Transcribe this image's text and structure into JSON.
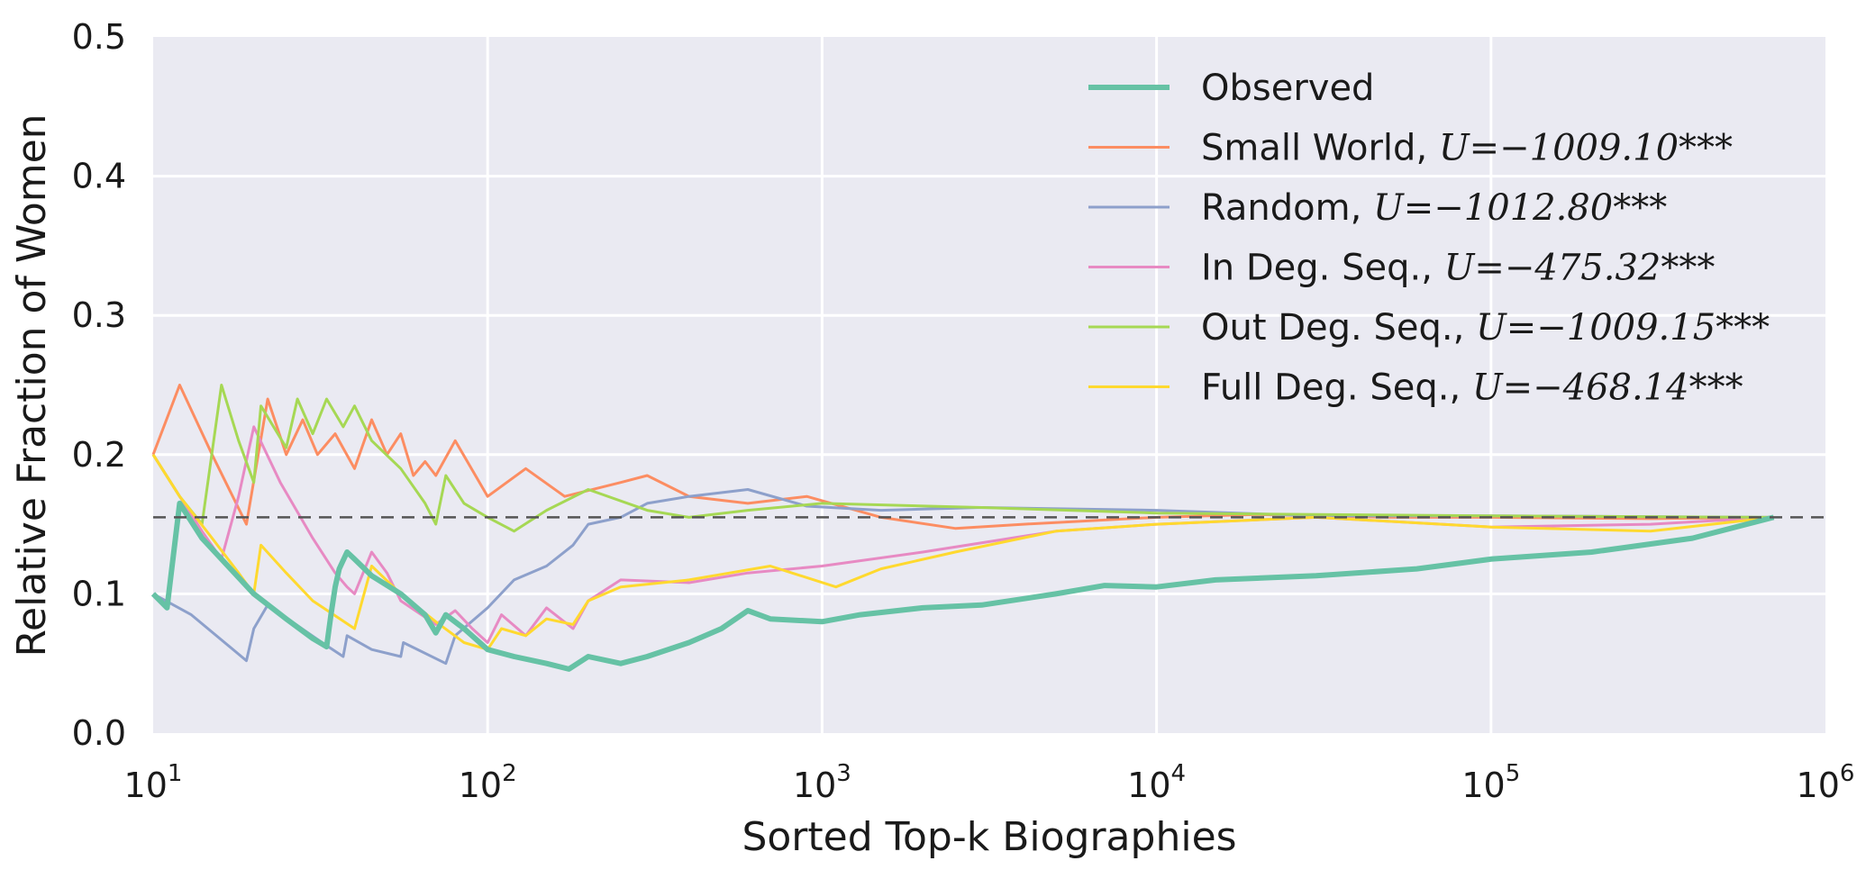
{
  "chart_data": {
    "type": "line",
    "xlabel": "Sorted Top-k Biographies",
    "ylabel": "Relative Fraction of Women",
    "x_scale": "log",
    "xlim": [
      10,
      1000000
    ],
    "ylim": [
      0,
      0.5
    ],
    "x_ticks": [
      {
        "value": 10,
        "base": "10",
        "exp": "1"
      },
      {
        "value": 100,
        "base": "10",
        "exp": "2"
      },
      {
        "value": 1000,
        "base": "10",
        "exp": "3"
      },
      {
        "value": 10000,
        "base": "10",
        "exp": "4"
      },
      {
        "value": 100000,
        "base": "10",
        "exp": "5"
      },
      {
        "value": 1000000,
        "base": "10",
        "exp": "6"
      }
    ],
    "y_ticks": [
      {
        "value": 0.0,
        "label": "0.0"
      },
      {
        "value": 0.1,
        "label": "0.1"
      },
      {
        "value": 0.2,
        "label": "0.2"
      },
      {
        "value": 0.3,
        "label": "0.3"
      },
      {
        "value": 0.4,
        "label": "0.4"
      },
      {
        "value": 0.5,
        "label": "0.5"
      }
    ],
    "grid": true,
    "legend_position": "upper-right",
    "reference_line": {
      "y": 0.155,
      "style": "dashed",
      "color": "#555555"
    },
    "series": [
      {
        "name": "Observed",
        "stat": "",
        "color": "#66c2a5",
        "width": 6,
        "points": [
          [
            10,
            0.1
          ],
          [
            11,
            0.09
          ],
          [
            12,
            0.165
          ],
          [
            14,
            0.14
          ],
          [
            16,
            0.125
          ],
          [
            20,
            0.1
          ],
          [
            25,
            0.082
          ],
          [
            30,
            0.068
          ],
          [
            33,
            0.062
          ],
          [
            34,
            0.085
          ],
          [
            35,
            0.105
          ],
          [
            36,
            0.118
          ],
          [
            38,
            0.13
          ],
          [
            40,
            0.125
          ],
          [
            45,
            0.113
          ],
          [
            55,
            0.1
          ],
          [
            65,
            0.085
          ],
          [
            70,
            0.072
          ],
          [
            75,
            0.085
          ],
          [
            85,
            0.075
          ],
          [
            100,
            0.06
          ],
          [
            120,
            0.055
          ],
          [
            150,
            0.05
          ],
          [
            175,
            0.046
          ],
          [
            200,
            0.055
          ],
          [
            250,
            0.05
          ],
          [
            300,
            0.055
          ],
          [
            400,
            0.065
          ],
          [
            500,
            0.075
          ],
          [
            600,
            0.088
          ],
          [
            700,
            0.082
          ],
          [
            1000,
            0.08
          ],
          [
            1300,
            0.085
          ],
          [
            2000,
            0.09
          ],
          [
            3000,
            0.092
          ],
          [
            5000,
            0.1
          ],
          [
            7000,
            0.106
          ],
          [
            10000,
            0.105
          ],
          [
            15000,
            0.11
          ],
          [
            30000,
            0.113
          ],
          [
            60000,
            0.118
          ],
          [
            100000,
            0.125
          ],
          [
            200000,
            0.13
          ],
          [
            400000,
            0.14
          ],
          [
            700000,
            0.155
          ]
        ]
      },
      {
        "name": "Small World, ",
        "stat": "U=−1009.10***",
        "color": "#fc8d62",
        "width": 3,
        "points": [
          [
            10,
            0.2
          ],
          [
            12,
            0.25
          ],
          [
            15,
            0.2
          ],
          [
            19,
            0.15
          ],
          [
            22,
            0.24
          ],
          [
            25,
            0.2
          ],
          [
            28,
            0.225
          ],
          [
            31,
            0.2
          ],
          [
            35,
            0.215
          ],
          [
            40,
            0.19
          ],
          [
            45,
            0.225
          ],
          [
            50,
            0.2
          ],
          [
            55,
            0.215
          ],
          [
            60,
            0.185
          ],
          [
            65,
            0.195
          ],
          [
            70,
            0.185
          ],
          [
            80,
            0.21
          ],
          [
            100,
            0.17
          ],
          [
            130,
            0.19
          ],
          [
            170,
            0.17
          ],
          [
            250,
            0.18
          ],
          [
            300,
            0.185
          ],
          [
            400,
            0.17
          ],
          [
            600,
            0.165
          ],
          [
            900,
            0.17
          ],
          [
            1500,
            0.155
          ],
          [
            2500,
            0.147
          ],
          [
            4000,
            0.15
          ],
          [
            10000,
            0.155
          ],
          [
            20000,
            0.157
          ],
          [
            50000,
            0.155
          ],
          [
            100000,
            0.155
          ],
          [
            300000,
            0.154
          ],
          [
            700000,
            0.155
          ]
        ]
      },
      {
        "name": "Random, ",
        "stat": "U=−1012.80***",
        "color": "#8da0cb",
        "width": 3,
        "points": [
          [
            10,
            0.1
          ],
          [
            13,
            0.085
          ],
          [
            19,
            0.052
          ],
          [
            20,
            0.075
          ],
          [
            22,
            0.092
          ],
          [
            26,
            0.08
          ],
          [
            32,
            0.065
          ],
          [
            37,
            0.055
          ],
          [
            38,
            0.07
          ],
          [
            45,
            0.06
          ],
          [
            55,
            0.055
          ],
          [
            56,
            0.065
          ],
          [
            75,
            0.05
          ],
          [
            80,
            0.07
          ],
          [
            100,
            0.09
          ],
          [
            120,
            0.11
          ],
          [
            150,
            0.12
          ],
          [
            180,
            0.135
          ],
          [
            200,
            0.15
          ],
          [
            250,
            0.155
          ],
          [
            300,
            0.165
          ],
          [
            400,
            0.17
          ],
          [
            600,
            0.175
          ],
          [
            900,
            0.163
          ],
          [
            1500,
            0.16
          ],
          [
            3000,
            0.162
          ],
          [
            10000,
            0.16
          ],
          [
            30000,
            0.156
          ],
          [
            100000,
            0.156
          ],
          [
            700000,
            0.155
          ]
        ]
      },
      {
        "name": "In Deg. Seq., ",
        "stat": "U=−475.32***",
        "color": "#e78ac3",
        "width": 3,
        "points": [
          [
            10,
            0.2
          ],
          [
            12,
            0.17
          ],
          [
            14,
            0.145
          ],
          [
            16,
            0.125
          ],
          [
            18,
            0.17
          ],
          [
            20,
            0.22
          ],
          [
            24,
            0.18
          ],
          [
            30,
            0.14
          ],
          [
            35,
            0.115
          ],
          [
            38,
            0.105
          ],
          [
            40,
            0.1
          ],
          [
            45,
            0.13
          ],
          [
            50,
            0.115
          ],
          [
            55,
            0.095
          ],
          [
            70,
            0.078
          ],
          [
            80,
            0.088
          ],
          [
            90,
            0.075
          ],
          [
            100,
            0.065
          ],
          [
            110,
            0.085
          ],
          [
            130,
            0.07
          ],
          [
            150,
            0.09
          ],
          [
            180,
            0.075
          ],
          [
            200,
            0.095
          ],
          [
            250,
            0.11
          ],
          [
            400,
            0.108
          ],
          [
            600,
            0.115
          ],
          [
            1000,
            0.12
          ],
          [
            2000,
            0.13
          ],
          [
            5000,
            0.145
          ],
          [
            10000,
            0.15
          ],
          [
            30000,
            0.155
          ],
          [
            100000,
            0.148
          ],
          [
            300000,
            0.15
          ],
          [
            700000,
            0.155
          ]
        ]
      },
      {
        "name": "Out Deg. Seq., ",
        "stat": "U=−1009.15***",
        "color": "#a6d854",
        "width": 3,
        "points": [
          [
            10,
            0.2
          ],
          [
            12,
            0.17
          ],
          [
            14,
            0.15
          ],
          [
            16,
            0.25
          ],
          [
            18,
            0.21
          ],
          [
            20,
            0.18
          ],
          [
            21,
            0.235
          ],
          [
            25,
            0.205
          ],
          [
            27,
            0.24
          ],
          [
            30,
            0.215
          ],
          [
            33,
            0.24
          ],
          [
            37,
            0.22
          ],
          [
            40,
            0.235
          ],
          [
            45,
            0.21
          ],
          [
            55,
            0.19
          ],
          [
            65,
            0.165
          ],
          [
            70,
            0.15
          ],
          [
            75,
            0.185
          ],
          [
            85,
            0.165
          ],
          [
            100,
            0.155
          ],
          [
            120,
            0.145
          ],
          [
            150,
            0.16
          ],
          [
            200,
            0.175
          ],
          [
            300,
            0.16
          ],
          [
            400,
            0.155
          ],
          [
            600,
            0.16
          ],
          [
            1000,
            0.165
          ],
          [
            3000,
            0.162
          ],
          [
            10000,
            0.158
          ],
          [
            30000,
            0.157
          ],
          [
            100000,
            0.156
          ],
          [
            700000,
            0.155
          ]
        ]
      },
      {
        "name": "Full Deg. Seq., ",
        "stat": "U=−468.14***",
        "color": "#ffd92f",
        "width": 3,
        "points": [
          [
            10,
            0.2
          ],
          [
            12,
            0.17
          ],
          [
            15,
            0.14
          ],
          [
            18,
            0.115
          ],
          [
            20,
            0.1
          ],
          [
            21,
            0.135
          ],
          [
            25,
            0.115
          ],
          [
            30,
            0.095
          ],
          [
            40,
            0.075
          ],
          [
            45,
            0.12
          ],
          [
            55,
            0.1
          ],
          [
            70,
            0.08
          ],
          [
            85,
            0.065
          ],
          [
            100,
            0.06
          ],
          [
            110,
            0.075
          ],
          [
            130,
            0.07
          ],
          [
            150,
            0.082
          ],
          [
            180,
            0.078
          ],
          [
            200,
            0.095
          ],
          [
            250,
            0.105
          ],
          [
            400,
            0.11
          ],
          [
            700,
            0.12
          ],
          [
            1100,
            0.105
          ],
          [
            1500,
            0.118
          ],
          [
            2500,
            0.13
          ],
          [
            5000,
            0.145
          ],
          [
            10000,
            0.15
          ],
          [
            30000,
            0.155
          ],
          [
            100000,
            0.148
          ],
          [
            300000,
            0.145
          ],
          [
            700000,
            0.155
          ]
        ]
      }
    ]
  }
}
